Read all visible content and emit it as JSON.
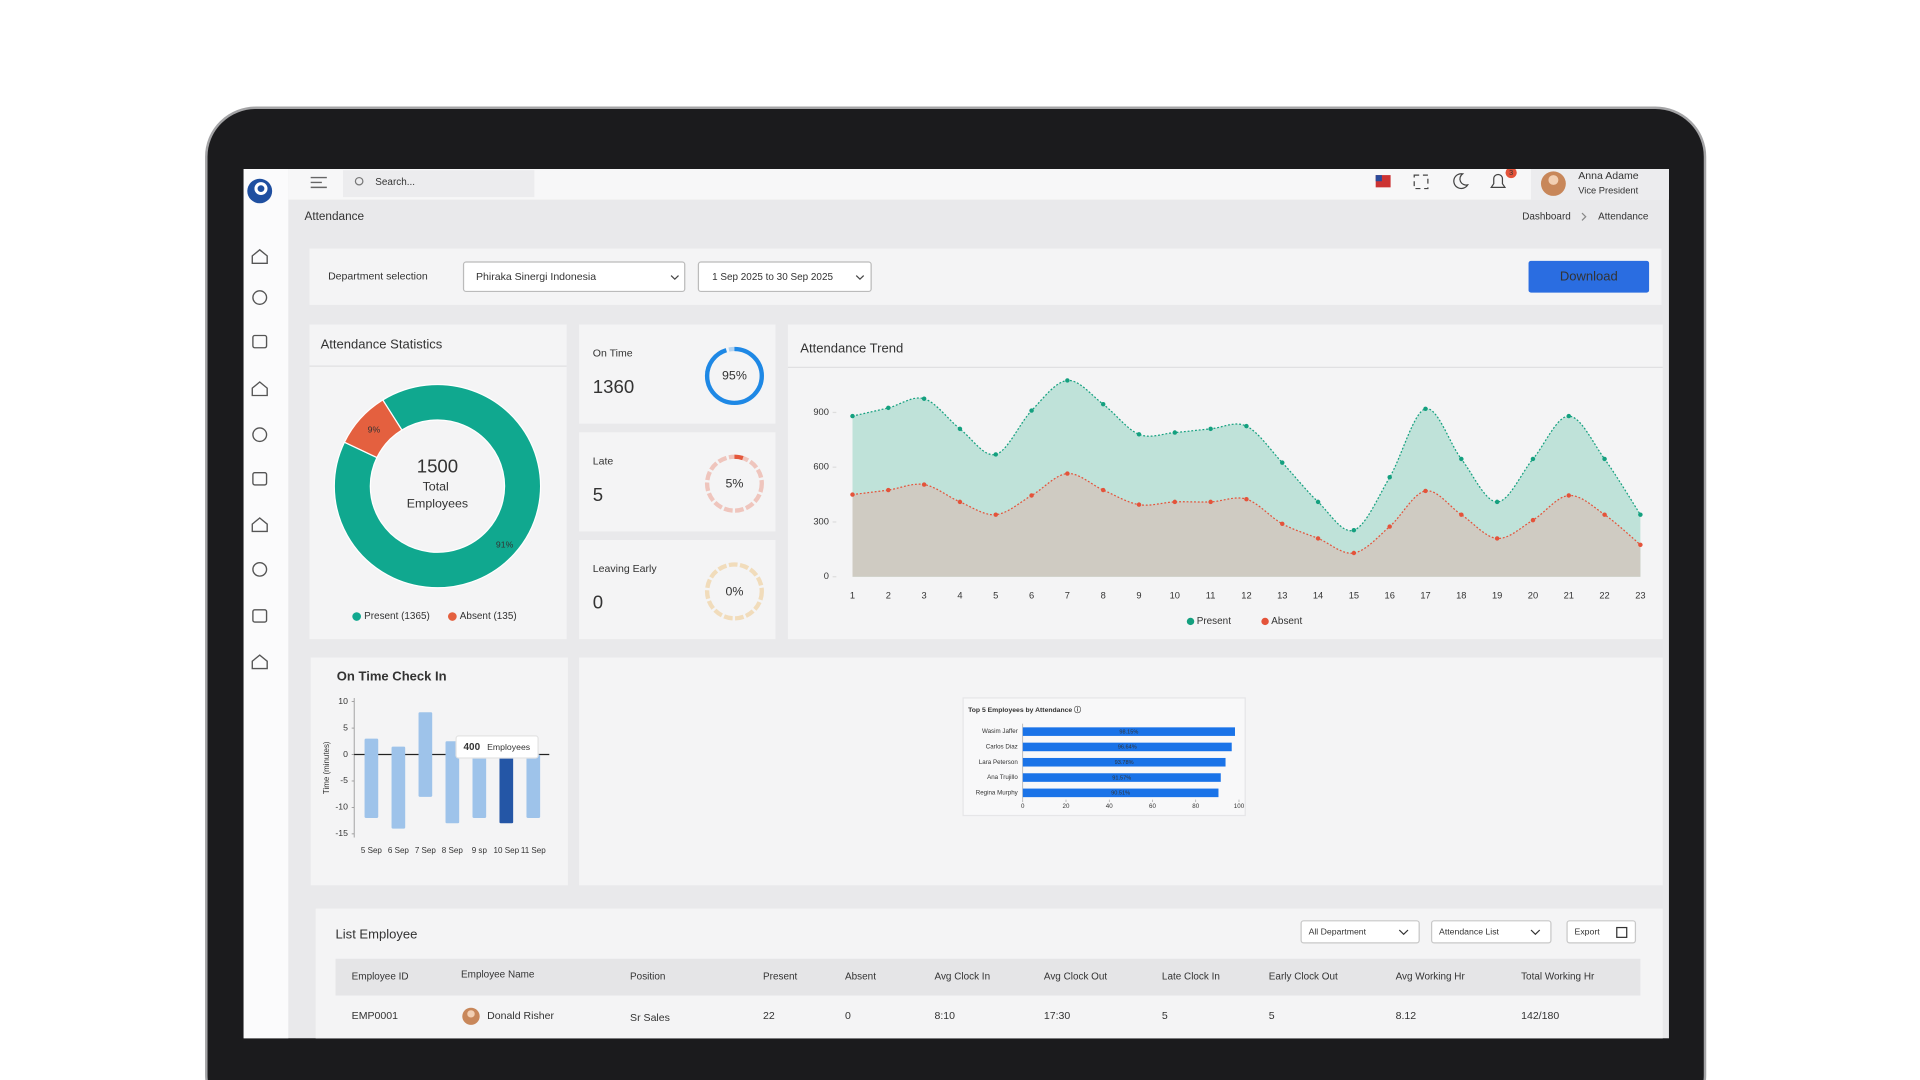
{
  "header": {
    "search_placeholder": "Search...",
    "notification_count": 3,
    "user_name": "Anna Adame",
    "user_role": "Vice President"
  },
  "breadcrumb": {
    "page_title": "Attendance",
    "items": [
      "Dashboard",
      "Attendance"
    ]
  },
  "filters": {
    "department_label": "Department selection",
    "department": "Phiraka Sinergi Indonesia",
    "date_range": "1 Sep 2025 to 30 Sep 2025",
    "download": "Download"
  },
  "kpis": [
    {
      "label": "On Time",
      "count": 1360,
      "percent": 95,
      "percent_label": "95%",
      "color": "#1e88e5"
    },
    {
      "label": "Late",
      "count": 5,
      "percent": 5,
      "percent_label": "5%",
      "color": "#e4583c"
    },
    {
      "label": "Leaving Early",
      "count": 0,
      "percent": 0,
      "percent_label": "0%",
      "color": "#eba534"
    }
  ],
  "chart_data": [
    {
      "type": "donut",
      "title": "Attendance Statistics",
      "center_value": 1500,
      "center_label": "Total Employees",
      "categories": [
        "Present (1365)",
        "Absent (135)"
      ],
      "values": [
        91,
        9
      ],
      "value_labels": [
        "91%",
        "9%"
      ],
      "colors": [
        "#10a88f",
        "#e4603f"
      ]
    },
    {
      "type": "area",
      "title": "Attendance Trend",
      "x": [
        1,
        2,
        3,
        4,
        5,
        6,
        7,
        8,
        9,
        10,
        11,
        12,
        13,
        14,
        15,
        16,
        17,
        18,
        19,
        20,
        21,
        22,
        23
      ],
      "xlim": [
        1,
        23
      ],
      "ylim": [
        0,
        1100
      ],
      "yticks": [
        0,
        300,
        600,
        900
      ],
      "series": [
        {
          "name": "Present",
          "color": "#14a07f",
          "fill": "#bfe2d9",
          "values": [
            880,
            925,
            975,
            810,
            670,
            910,
            1075,
            945,
            780,
            790,
            810,
            825,
            625,
            410,
            255,
            545,
            920,
            645,
            410,
            645,
            880,
            645,
            340
          ]
        },
        {
          "name": "Absent",
          "color": "#e4533a",
          "fill": "#cfcbc2",
          "values": [
            450,
            475,
            505,
            410,
            340,
            445,
            565,
            475,
            395,
            410,
            410,
            425,
            290,
            210,
            130,
            275,
            470,
            340,
            210,
            310,
            445,
            340,
            175
          ]
        }
      ]
    },
    {
      "type": "floating_bar",
      "title": "On Time Check In",
      "y_label": "Time (minutes)",
      "categories": [
        "5 Sep",
        "6 Sep",
        "7 Sep",
        "8 Sep",
        "9 sp",
        "10 Sep",
        "11 Sep"
      ],
      "low": [
        -12,
        -14,
        -8,
        -13,
        -12,
        -13,
        -12
      ],
      "high": [
        3,
        1.5,
        8,
        2.5,
        0,
        0,
        0
      ],
      "colors": [
        "#9ec3ea",
        "#9ec3ea",
        "#9ec3ea",
        "#9ec3ea",
        "#9ec3ea",
        "#2456a6",
        "#9ec3ea"
      ],
      "ylim": [
        -15,
        10
      ],
      "yticks": [
        10,
        5,
        0,
        -5,
        -10,
        -15
      ],
      "annotation": {
        "count": 400,
        "text": "Employees"
      }
    },
    {
      "type": "hbar",
      "title": "Top 5 Employees by Attendance ⓘ",
      "categories": [
        "Wasim Jaffer",
        "Carlos Diaz",
        "Lara Peterson",
        "Ana Trujillo",
        "Regina Murphy"
      ],
      "values": [
        98.15,
        96.64,
        93.78,
        91.57,
        90.51
      ],
      "value_labels": [
        "98.15%",
        "96.64%",
        "93.78%",
        "91.57%",
        "90.51%"
      ],
      "xlim": [
        0,
        100
      ],
      "xticks": [
        0,
        20,
        40,
        60,
        80,
        100
      ],
      "color": "#1a73e8"
    }
  ],
  "table": {
    "title": "List Employee",
    "filters": [
      "All Department",
      "Attendance List",
      "Export"
    ],
    "columns": [
      "Employee ID",
      "Employee Name",
      "Position",
      "Present",
      "Absent",
      "Avg Clock In",
      "Avg Clock Out",
      "Late Clock In",
      "Early Clock Out",
      "Avg Working Hr",
      "Total Working Hr"
    ],
    "rows": [
      [
        "EMP0001",
        "Donald Risher",
        "Sr Sales",
        22,
        0,
        "8:10",
        "17:30",
        5,
        5,
        8.12,
        "142/180"
      ]
    ]
  }
}
